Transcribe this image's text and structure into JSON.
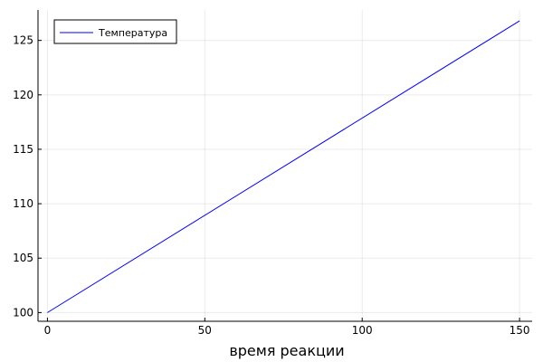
{
  "chart_data": {
    "type": "line",
    "xlabel": "время реакции",
    "ylabel": "",
    "xlim": [
      -3,
      154
    ],
    "ylim": [
      99.2,
      127.8
    ],
    "x_ticks": [
      0,
      50,
      100,
      150
    ],
    "y_ticks": [
      100,
      105,
      110,
      115,
      120,
      125
    ],
    "grid": true,
    "legend_position": "top-left",
    "series": [
      {
        "name": "Температура",
        "color": "#0000ff",
        "x": [
          0,
          150
        ],
        "y": [
          100,
          126.8
        ]
      }
    ]
  }
}
